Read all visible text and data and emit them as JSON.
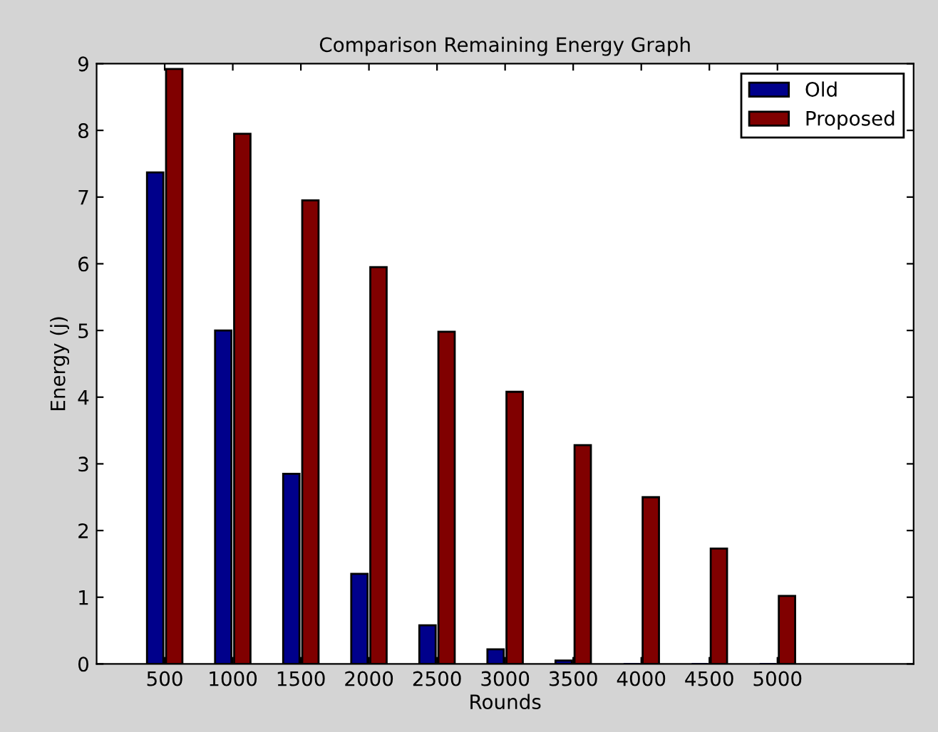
{
  "chart_data": {
    "type": "bar",
    "title": "Comparison Remaining Energy Graph",
    "xlabel": "Rounds",
    "ylabel": "Energy (j)",
    "x": [
      500,
      1000,
      1500,
      2000,
      2500,
      3000,
      3500,
      4000,
      4500,
      5000
    ],
    "series": [
      {
        "name": "Old",
        "color": "#00008b",
        "values": [
          7.37,
          5.0,
          2.85,
          1.35,
          0.58,
          0.22,
          0.05,
          0,
          0,
          0
        ]
      },
      {
        "name": "Proposed",
        "color": "#800000",
        "values": [
          8.92,
          7.95,
          6.95,
          5.95,
          4.98,
          4.08,
          3.28,
          2.5,
          1.73,
          1.02
        ]
      }
    ],
    "xlim": [
      0,
      6000
    ],
    "xticks": [
      500,
      1000,
      1500,
      2000,
      2500,
      3000,
      3500,
      4000,
      4500,
      5000
    ],
    "ylim": [
      0,
      9
    ],
    "yticks": [
      0,
      1,
      2,
      3,
      4,
      5,
      6,
      7,
      8,
      9
    ],
    "grid": false,
    "legend": "top right"
  }
}
